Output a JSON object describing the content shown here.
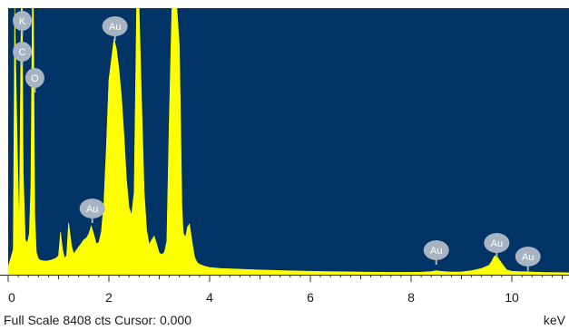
{
  "chart_data": {
    "type": "area",
    "title": "",
    "xlabel": "",
    "ylabel": "",
    "unit_label": "keV",
    "xlim": [
      0,
      11.3
    ],
    "ylim": [
      0,
      8408
    ],
    "xticks": [
      0,
      2,
      4,
      6,
      8,
      10
    ],
    "grid": false,
    "colors": {
      "background": "#003366",
      "spectrum": "#ffff00",
      "marker": "#a9b4c2"
    },
    "series": [
      {
        "x": [
          0.0,
          0.1,
          0.13,
          0.18,
          0.22,
          0.26,
          0.28,
          0.3,
          0.34,
          0.38,
          0.42,
          0.45,
          0.48,
          0.5,
          0.53,
          0.56,
          0.6,
          0.65,
          0.75,
          0.85,
          0.95,
          1.0,
          1.04,
          1.08,
          1.12,
          1.16,
          1.2,
          1.26,
          1.3,
          1.34,
          1.4,
          1.45,
          1.5,
          1.55,
          1.6,
          1.65,
          1.7,
          1.75,
          1.8,
          1.85,
          1.9,
          1.95,
          2.0,
          2.05,
          2.1,
          2.15,
          2.2,
          2.25,
          2.3,
          2.35,
          2.4,
          2.45,
          2.5,
          2.55,
          2.6,
          2.65,
          2.7,
          2.75,
          2.8,
          2.85,
          2.9,
          2.95,
          3.0,
          3.05,
          3.1,
          3.15,
          3.2,
          3.25,
          3.28,
          3.31,
          3.35,
          3.4,
          3.43,
          3.45,
          3.48,
          3.52,
          3.56,
          3.6,
          3.65,
          3.7,
          3.75,
          3.8,
          3.9,
          4.0,
          4.2,
          4.5,
          5.0,
          5.5,
          6.0,
          6.5,
          7.0,
          7.5,
          8.0,
          8.2,
          8.4,
          8.5,
          8.6,
          8.8,
          9.0,
          9.2,
          9.4,
          9.55,
          9.6,
          9.65,
          9.7,
          9.75,
          9.8,
          9.85,
          9.9,
          10.0,
          10.2,
          10.3,
          10.4,
          10.6,
          11.0,
          11.3
        ],
        "values": [
          240,
          800,
          8408,
          4100,
          1400,
          8408,
          8408,
          3200,
          1100,
          1000,
          1300,
          2800,
          8408,
          8408,
          1800,
          700,
          500,
          450,
          430,
          460,
          520,
          600,
          1350,
          800,
          520,
          600,
          1640,
          900,
          660,
          740,
          880,
          980,
          1100,
          1150,
          1280,
          1540,
          1280,
          980,
          1010,
          1360,
          2240,
          4040,
          6150,
          6780,
          7440,
          7120,
          6470,
          5600,
          4400,
          3000,
          2120,
          1880,
          2600,
          8408,
          8408,
          5400,
          2600,
          1400,
          950,
          1100,
          1220,
          960,
          680,
          640,
          700,
          1050,
          5000,
          8408,
          8408,
          8408,
          8408,
          7200,
          4200,
          2100,
          1300,
          1180,
          1500,
          1600,
          1050,
          560,
          390,
          330,
          270,
          230,
          200,
          180,
          150,
          130,
          110,
          95,
          85,
          75,
          75,
          80,
          100,
          130,
          105,
          85,
          90,
          130,
          200,
          300,
          420,
          580,
          600,
          470,
          360,
          250,
          150,
          110,
          95,
          95,
          85,
          75,
          65,
          55
        ]
      }
    ],
    "element_markers": [
      {
        "label": "K",
        "x": 0.28
      },
      {
        "label": "C",
        "x": 0.28
      },
      {
        "label": "O",
        "x": 0.53
      },
      {
        "label": "Au",
        "x": 2.12
      },
      {
        "label": "Au",
        "x": 1.67
      },
      {
        "label": "Au",
        "x": 8.5
      },
      {
        "label": "Au",
        "x": 9.7
      },
      {
        "label": "Au",
        "x": 10.32
      }
    ]
  },
  "status": {
    "full_scale": "Full Scale 8408 cts Cursor: 0.000"
  }
}
